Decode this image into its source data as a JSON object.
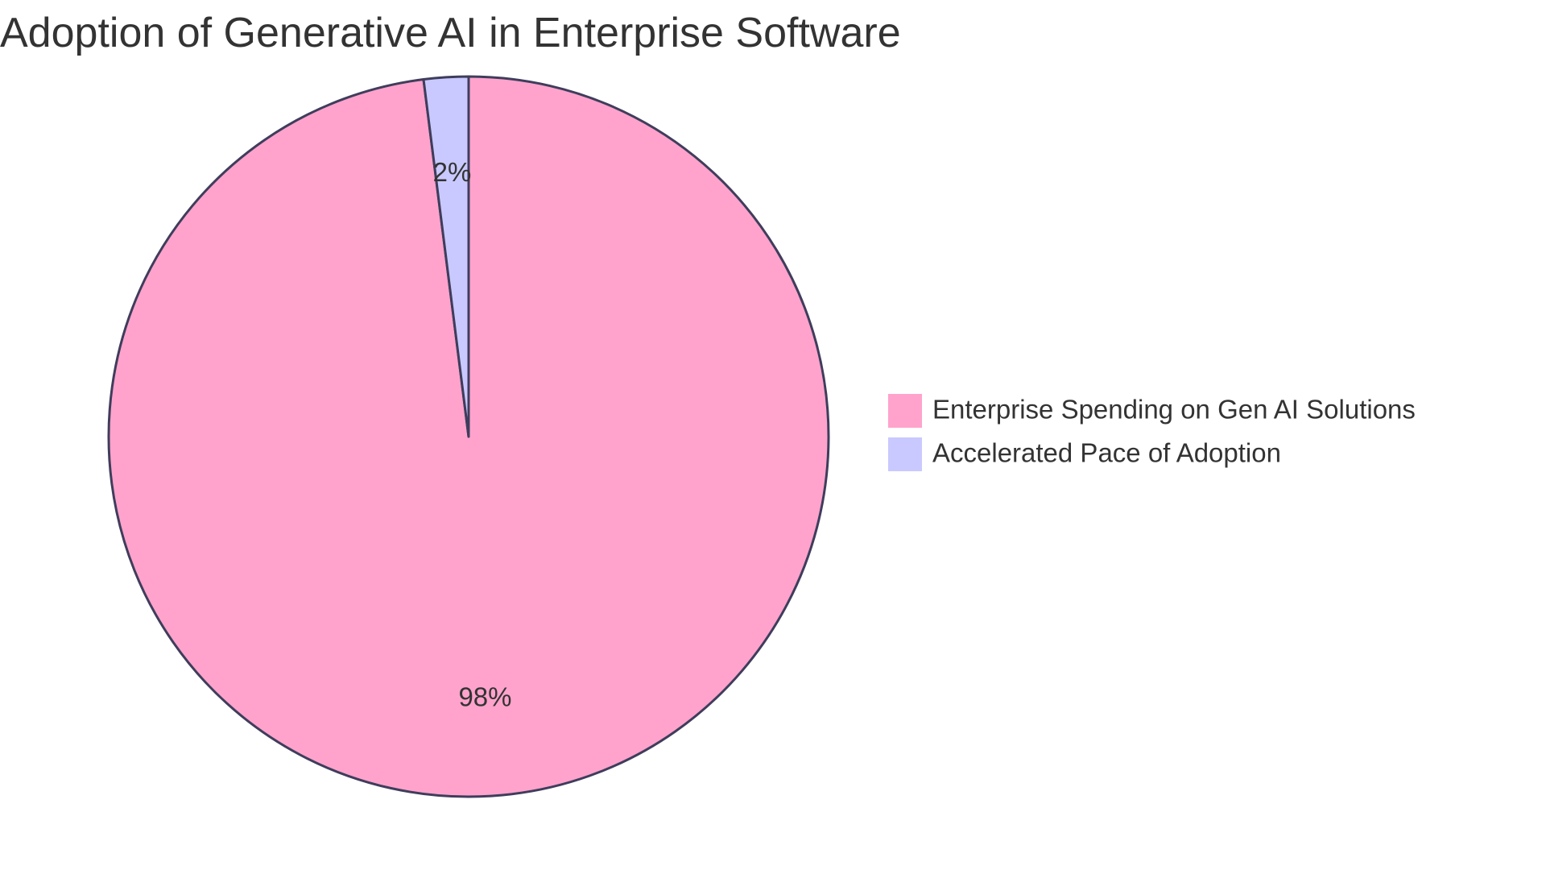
{
  "chart_data": {
    "type": "pie",
    "title": "Adoption of Generative AI in Enterprise Software",
    "slices": [
      {
        "name": "Enterprise Spending on Gen AI Solutions",
        "value": 98,
        "label": "98%",
        "color": "#ffa3cc"
      },
      {
        "name": "Accelerated Pace of Adoption",
        "value": 2,
        "label": "2%",
        "color": "#c9c9ff"
      }
    ],
    "legend_position": "right",
    "stroke_color": "#3f3d5c"
  }
}
